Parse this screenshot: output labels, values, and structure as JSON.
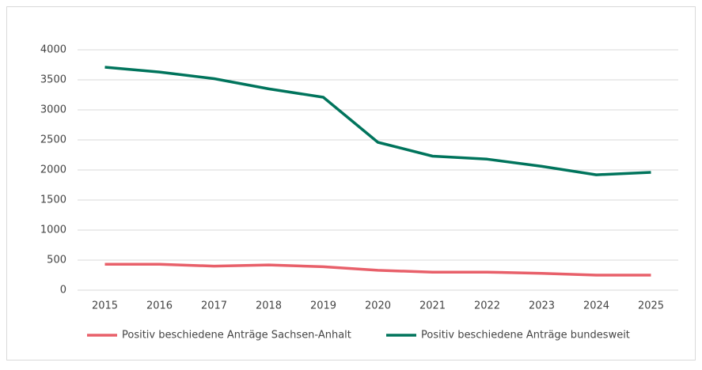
{
  "chart_data": {
    "type": "line",
    "categories": [
      "2015",
      "2016",
      "2017",
      "2018",
      "2019",
      "2020",
      "2021",
      "2022",
      "2023",
      "2024",
      "2025"
    ],
    "series": [
      {
        "name": "Positiv beschiedene Anträge Sachsen-Anhalt",
        "color": "#e8606a",
        "values": [
          430,
          430,
          400,
          420,
          390,
          330,
          300,
          300,
          280,
          250,
          250
        ]
      },
      {
        "name": "Positiv beschiedene Anträge bundesweit",
        "color": "#00745c",
        "values": [
          3710,
          3630,
          3520,
          3350,
          3210,
          2460,
          2230,
          2180,
          2060,
          1920,
          1960
        ]
      }
    ],
    "ylim": [
      0,
      4000
    ],
    "yticks": [
      0,
      500,
      1000,
      1500,
      2000,
      2500,
      3000,
      3500,
      4000
    ],
    "grid": true,
    "legend": "bottom"
  }
}
